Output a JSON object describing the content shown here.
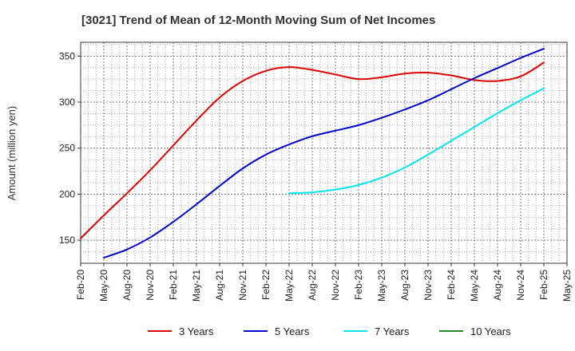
{
  "chart_data": {
    "type": "line",
    "title": "[3021]  Trend of Mean of 12-Month Moving Sum of Net Incomes",
    "xlabel": "",
    "ylabel": "Amount (million yen)",
    "ylim": [
      125,
      365
    ],
    "y_ticks": [
      150,
      200,
      250,
      300,
      350
    ],
    "x_ticks": [
      "Feb-20",
      "May-20",
      "Aug-20",
      "Nov-20",
      "Feb-21",
      "May-21",
      "Aug-21",
      "Nov-21",
      "Feb-22",
      "May-22",
      "Aug-22",
      "Nov-22",
      "Feb-23",
      "May-23",
      "Aug-23",
      "Nov-23",
      "Feb-24",
      "May-24",
      "Aug-24",
      "Nov-24",
      "Feb-25",
      "May-25"
    ],
    "grid": true,
    "legend_position": "bottom",
    "series": [
      {
        "name": "3 Years",
        "color": "#dd0000",
        "x": [
          "Feb-20",
          "May-20",
          "Aug-20",
          "Nov-20",
          "Feb-21",
          "May-21",
          "Aug-21",
          "Nov-21",
          "Feb-22",
          "May-22",
          "Aug-22",
          "Nov-22",
          "Feb-23",
          "May-23",
          "Aug-23",
          "Nov-23",
          "Feb-24",
          "May-24",
          "Aug-24",
          "Nov-24",
          "Feb-25"
        ],
        "values": [
          152,
          177,
          201,
          226,
          253,
          280,
          305,
          323,
          334,
          338,
          335,
          330,
          325,
          327,
          331,
          332,
          329,
          324,
          323,
          328,
          343
        ]
      },
      {
        "name": "5 Years",
        "color": "#0000cc",
        "x": [
          "May-20",
          "Aug-20",
          "Nov-20",
          "Feb-21",
          "May-21",
          "Aug-21",
          "Nov-21",
          "Feb-22",
          "May-22",
          "Aug-22",
          "Nov-22",
          "Feb-23",
          "May-23",
          "Aug-23",
          "Nov-23",
          "Feb-24",
          "May-24",
          "Aug-24",
          "Nov-24",
          "Feb-25"
        ],
        "values": [
          131,
          140,
          153,
          170,
          189,
          209,
          228,
          243,
          254,
          263,
          269,
          275,
          283,
          292,
          302,
          314,
          326,
          337,
          348,
          358
        ]
      },
      {
        "name": "7 Years",
        "color": "#00e5ee",
        "x": [
          "May-22",
          "Aug-22",
          "Nov-22",
          "Feb-23",
          "May-23",
          "Aug-23",
          "Nov-23",
          "Feb-24",
          "May-24",
          "Aug-24",
          "Nov-24",
          "Feb-25"
        ],
        "values": [
          201,
          202,
          205,
          210,
          218,
          229,
          243,
          258,
          273,
          288,
          302,
          315
        ]
      },
      {
        "name": "10 Years",
        "color": "#228b22",
        "x": [],
        "values": []
      }
    ]
  }
}
